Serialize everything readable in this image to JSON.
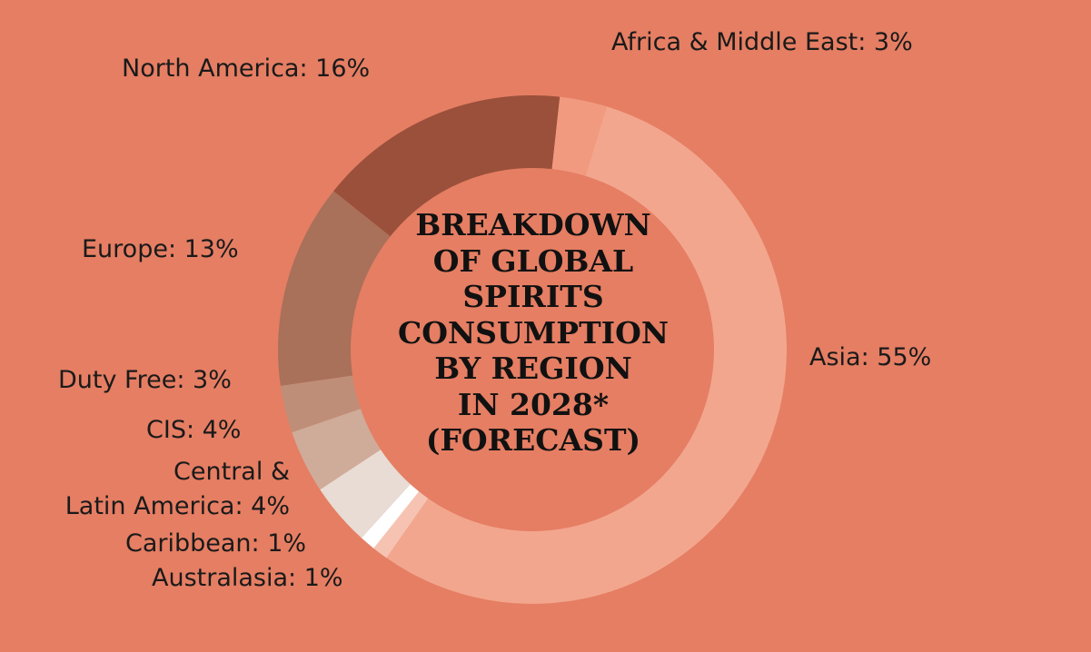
{
  "chart_data": {
    "type": "pie",
    "title_lines": [
      "BREAKDOWN",
      "OF GLOBAL",
      "SPIRITS",
      "CONSUMPTION",
      "BY REGION",
      "IN 2028*",
      "(FORECAST)"
    ],
    "slices": [
      {
        "name": "Asia",
        "value": 55,
        "label": "Asia: 55%",
        "color": "#F3A68E"
      },
      {
        "name": "Australasia",
        "value": 1,
        "label": "Australasia: 1%",
        "color": "#F6C3B2"
      },
      {
        "name": "Caribbean",
        "value": 1,
        "label": "Caribbean: 1%",
        "color": "#FFFFFF"
      },
      {
        "name": "Central & Latin America",
        "value": 4,
        "label_lines": [
          "Central &",
          "Latin America: 4%"
        ],
        "color": "#E8DCD4"
      },
      {
        "name": "CIS",
        "value": 4,
        "label": "CIS: 4%",
        "color": "#CFAB99"
      },
      {
        "name": "Duty Free",
        "value": 3,
        "label": "Duty Free: 3%",
        "color": "#BF8E78"
      },
      {
        "name": "Europe",
        "value": 13,
        "label": "Europe: 13%",
        "color": "#A9705A"
      },
      {
        "name": "North America",
        "value": 16,
        "label": "North America: 16%",
        "color": "#9A503A"
      },
      {
        "name": "Africa & Middle East",
        "value": 3,
        "label": "Africa & Middle East: 3%",
        "color": "#F19A80"
      }
    ],
    "background": "#E57E63"
  }
}
